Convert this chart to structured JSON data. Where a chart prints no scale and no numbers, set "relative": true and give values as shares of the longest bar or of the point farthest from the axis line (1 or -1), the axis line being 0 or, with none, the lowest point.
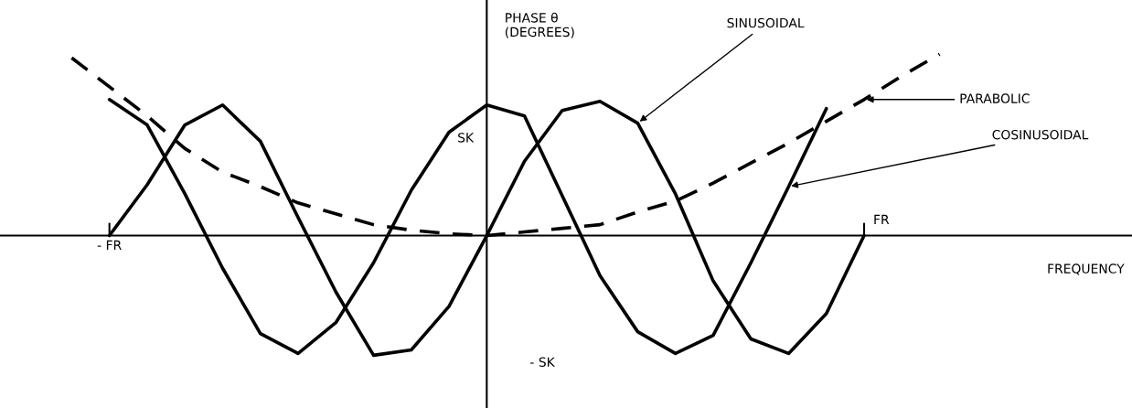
{
  "chart_data": {
    "type": "line",
    "xlabel": "FREQUENCY",
    "ylabel": "PHASE θ\n(DEGREES)",
    "relative": true,
    "categories": [
      null,
      null,
      "- FR",
      null,
      null,
      null,
      null,
      null,
      null,
      null,
      null,
      null,
      null,
      null,
      null,
      null,
      null,
      null,
      null,
      null,
      null,
      null,
      "FR",
      null,
      null,
      null
    ],
    "annotations": [
      "SK",
      "- SK"
    ],
    "legend": false,
    "marker": "none",
    "series": [
      {
        "name": "SINUSOIDAL",
        "color": "#000000",
        "line_style": "solid",
        "values": [
          null,
          null,
          0,
          0.28,
          0.61,
          0.72,
          0.52,
          0.1,
          -0.31,
          -0.66,
          -0.63,
          -0.39,
          0,
          0.41,
          0.69,
          0.74,
          0.62,
          0.23,
          -0.25,
          -0.57,
          -0.65,
          -0.43,
          0,
          null,
          null,
          null
        ]
      },
      {
        "name": "PARABOLIC",
        "color": "#000000",
        "line_style": "dashed",
        "values": [
          null,
          0.98,
          0.82,
          0.66,
          0.48,
          0.35,
          0.27,
          0.18,
          0.12,
          0.06,
          0.03,
          0.01,
          0,
          0.02,
          0.04,
          0.06,
          0.13,
          0.19,
          0.29,
          0.4,
          0.51,
          0.63,
          0.75,
          0.88,
          1,
          null
        ]
      },
      {
        "name": "COSINUSOIDAL",
        "color": "#000000",
        "line_style": "solid",
        "values": [
          null,
          null,
          0.75,
          0.61,
          0.23,
          -0.18,
          -0.54,
          -0.65,
          -0.48,
          -0.15,
          0.25,
          0.57,
          0.72,
          0.66,
          0.22,
          -0.22,
          -0.53,
          -0.65,
          -0.55,
          -0.15,
          0.27,
          0.7,
          null,
          null,
          null,
          null
        ]
      }
    ]
  }
}
